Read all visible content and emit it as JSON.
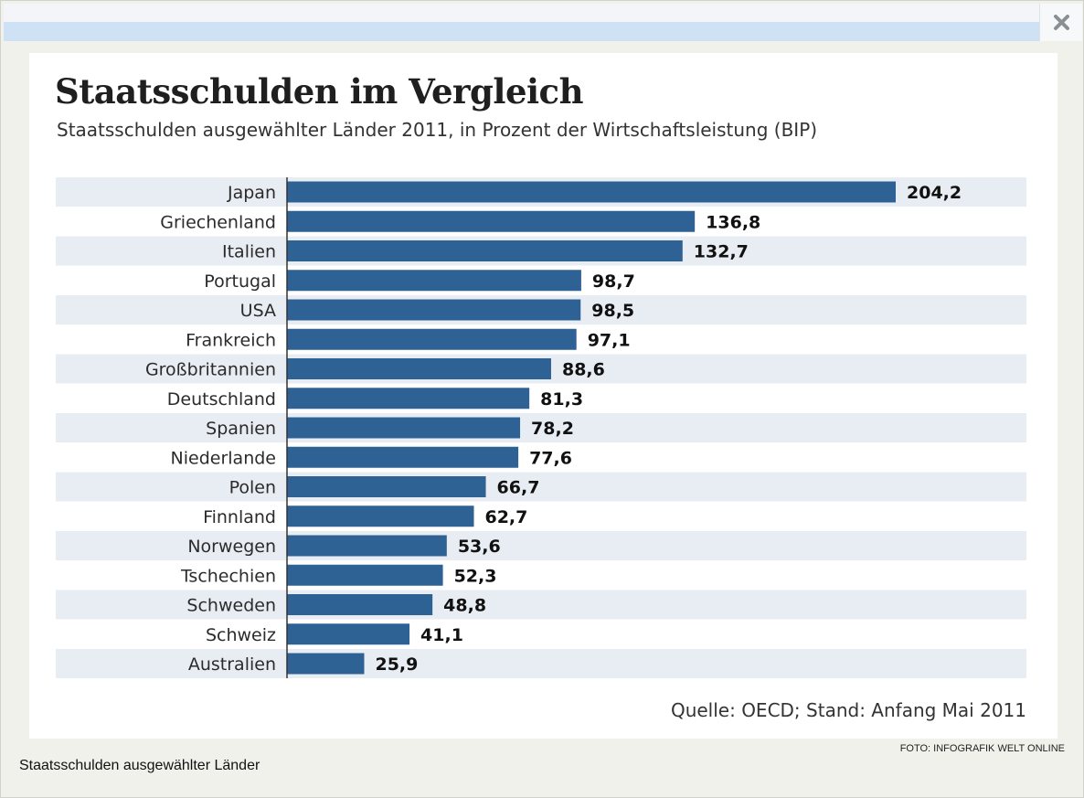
{
  "dialog": {
    "close_icon": "close-icon",
    "caption": "Staatsschulden ausgewählter Länder",
    "photo_credit": "FOTO: INFOGRAFIK WELT ONLINE"
  },
  "colors": {
    "bar": "#2f6294",
    "row_band": "#e8edf3",
    "label": "#2b2b2b",
    "value": "#111111"
  },
  "chart_data": {
    "type": "bar",
    "orientation": "horizontal",
    "title": "Staatsschulden im Vergleich",
    "subtitle": "Staatsschulden ausgewählter Länder 2011, in Prozent der Wirtschaftsleistung (BIP)",
    "source": "Quelle: OECD; Stand: Anfang Mai 2011",
    "categories": [
      "Japan",
      "Griechenland",
      "Italien",
      "Portugal",
      "USA",
      "Frankreich",
      "Großbritannien",
      "Deutschland",
      "Spanien",
      "Niederlande",
      "Polen",
      "Finnland",
      "Norwegen",
      "Tschechien",
      "Schweden",
      "Schweiz",
      "Australien"
    ],
    "values": [
      204.2,
      136.8,
      132.7,
      98.7,
      98.5,
      97.1,
      88.6,
      81.3,
      78.2,
      77.6,
      66.7,
      62.7,
      53.6,
      52.3,
      48.8,
      41.1,
      25.9
    ],
    "value_labels": [
      "204,2",
      "136,8",
      "132,7",
      "98,7",
      "98,5",
      "97,1",
      "88,6",
      "81,3",
      "78,2",
      "77,6",
      "66,7",
      "62,7",
      "53,6",
      "52,3",
      "48,8",
      "41,1",
      "25,9"
    ],
    "xlim": [
      0,
      204.2
    ],
    "grid": false,
    "legend": "none"
  }
}
